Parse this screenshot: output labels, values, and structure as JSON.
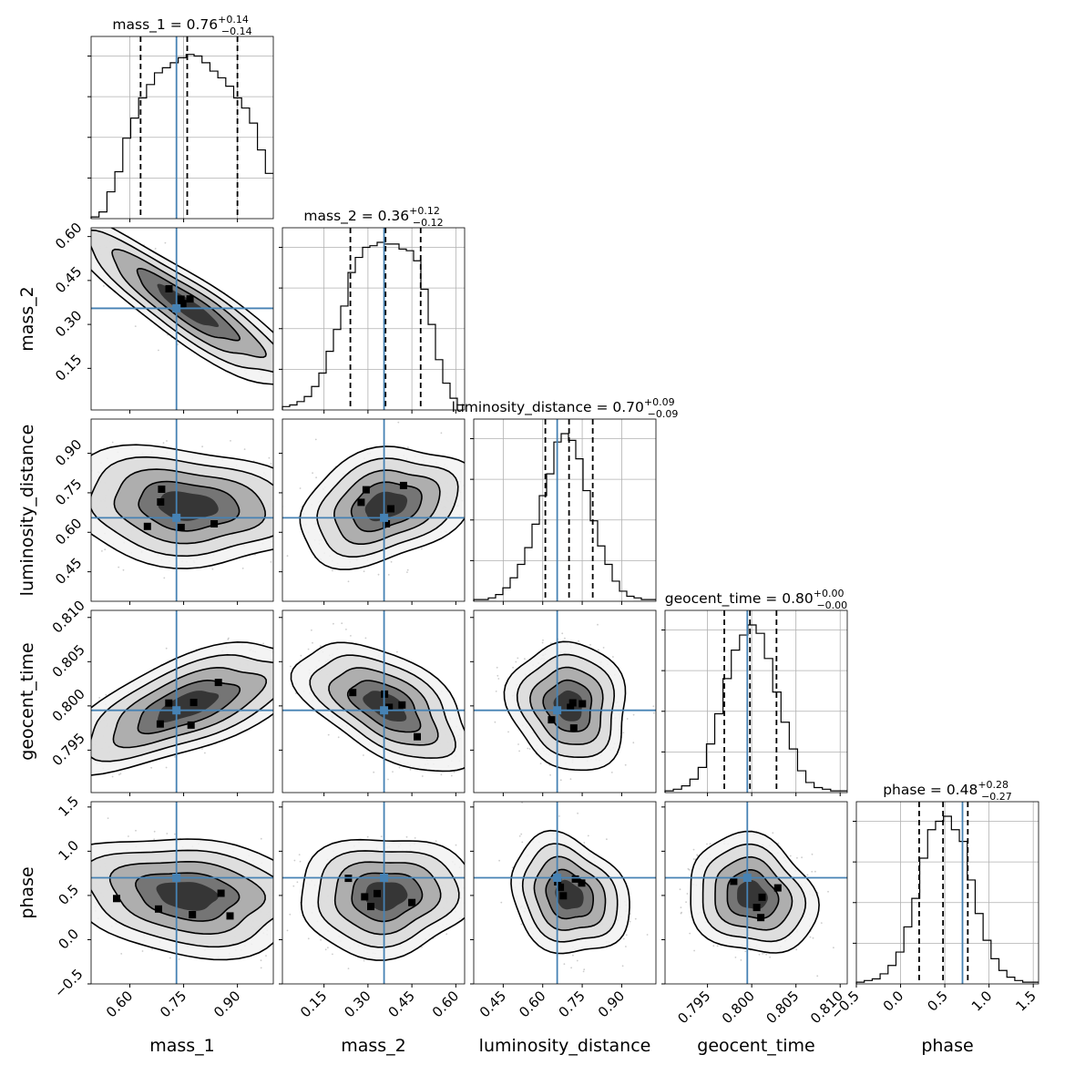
{
  "chart_data": {
    "type": "corner",
    "parameters": [
      "mass_1",
      "mass_2",
      "luminosity_distance",
      "geocent_time",
      "phase"
    ],
    "axis_labels": [
      "mass_1",
      "mass_2",
      "luminosity_distance",
      "geocent_time",
      "phase"
    ],
    "ranges": [
      [
        0.492,
        1.0
      ],
      [
        0.008,
        0.63
      ],
      [
        0.338,
        1.03
      ],
      [
        0.7902,
        0.8108
      ],
      [
        -0.5,
        1.56
      ]
    ],
    "ticks": [
      {
        "values": [
          0.6,
          0.75,
          0.9
        ],
        "labels": [
          "0.60",
          "0.75",
          "0.90"
        ]
      },
      {
        "values": [
          0.15,
          0.3,
          0.45,
          0.6
        ],
        "labels": [
          "0.15",
          "0.30",
          "0.45",
          "0.60"
        ]
      },
      {
        "values": [
          0.45,
          0.6,
          0.75,
          0.9
        ],
        "labels": [
          "0.45",
          "0.60",
          "0.75",
          "0.90"
        ]
      },
      {
        "values": [
          0.795,
          0.8,
          0.805,
          0.81
        ],
        "labels": [
          "0.795",
          "0.800",
          "0.805",
          "0.810"
        ]
      },
      {
        "values": [
          -0.5,
          0.0,
          0.5,
          1.0,
          1.5
        ],
        "labels": [
          "−0.5",
          "0.0",
          "0.5",
          "1.0",
          "1.5"
        ]
      }
    ],
    "truths": [
      0.73,
      0.355,
      0.655,
      0.7995,
      0.7
    ],
    "titles": [
      {
        "name": "mass_1",
        "median": "0.76",
        "plus": "+0.14",
        "minus": "−0.14",
        "q": [
          0.63,
          0.76,
          0.9
        ]
      },
      {
        "name": "mass_2",
        "median": "0.36",
        "plus": "+0.12",
        "minus": "−0.12",
        "q": [
          0.24,
          0.36,
          0.48
        ]
      },
      {
        "name": "luminosity_distance",
        "median": "0.70",
        "plus": "+0.09",
        "minus": "−0.09",
        "q": [
          0.61,
          0.7,
          0.79
        ]
      },
      {
        "name": "geocent_time",
        "median": "0.80",
        "plus": "+0.00",
        "minus": "−0.00",
        "q": [
          0.7969,
          0.7998,
          0.8028
        ]
      },
      {
        "name": "phase",
        "median": "0.48",
        "plus": "+0.28",
        "minus": "−0.27",
        "q": [
          0.21,
          0.48,
          0.76
        ]
      }
    ],
    "histograms": [
      [
        0.01,
        0.04,
        0.16,
        0.28,
        0.48,
        0.6,
        0.72,
        0.8,
        0.87,
        0.9,
        0.93,
        0.96,
        0.98,
        0.97,
        0.93,
        0.88,
        0.84,
        0.79,
        0.72,
        0.66,
        0.57,
        0.41,
        0.27
      ],
      [
        0.02,
        0.03,
        0.05,
        0.08,
        0.14,
        0.22,
        0.35,
        0.48,
        0.62,
        0.82,
        0.91,
        0.97,
        0.98,
        1.0,
        0.99,
        0.99,
        0.96,
        0.95,
        0.89,
        0.72,
        0.51,
        0.3,
        0.16,
        0.07,
        0.03
      ],
      [
        0.01,
        0.01,
        0.02,
        0.04,
        0.08,
        0.14,
        0.22,
        0.32,
        0.46,
        0.63,
        0.76,
        0.95,
        1.0,
        0.96,
        0.85,
        0.66,
        0.48,
        0.33,
        0.22,
        0.12,
        0.06,
        0.03,
        0.02,
        0.01,
        0.01
      ],
      [
        0.01,
        0.02,
        0.04,
        0.08,
        0.15,
        0.29,
        0.47,
        0.68,
        0.85,
        0.94,
        1.0,
        0.95,
        0.8,
        0.6,
        0.42,
        0.26,
        0.13,
        0.06,
        0.03,
        0.02,
        0.01,
        0.01
      ],
      [
        0.01,
        0.02,
        0.03,
        0.06,
        0.11,
        0.19,
        0.34,
        0.51,
        0.75,
        0.92,
        0.97,
        1.0,
        0.92,
        0.85,
        0.62,
        0.42,
        0.26,
        0.15,
        0.08,
        0.04,
        0.02,
        0.01,
        0.01
      ]
    ],
    "pairs": [
      {
        "row": 1,
        "col": 0,
        "mean": [
          0.76,
          0.36
        ],
        "sd": [
          0.14,
          0.12
        ],
        "rho": -0.9
      },
      {
        "row": 2,
        "col": 0,
        "mean": [
          0.76,
          0.7
        ],
        "sd": [
          0.14,
          0.09
        ],
        "rho": -0.15
      },
      {
        "row": 2,
        "col": 1,
        "mean": [
          0.36,
          0.7
        ],
        "sd": [
          0.12,
          0.09
        ],
        "rho": 0.3
      },
      {
        "row": 3,
        "col": 0,
        "mean": [
          0.76,
          0.8
        ],
        "sd": [
          0.14,
          0.0029
        ],
        "rho": 0.65
      },
      {
        "row": 3,
        "col": 1,
        "mean": [
          0.36,
          0.8
        ],
        "sd": [
          0.12,
          0.0029
        ],
        "rho": -0.55
      },
      {
        "row": 3,
        "col": 2,
        "mean": [
          0.7,
          0.8
        ],
        "sd": [
          0.09,
          0.0029
        ],
        "rho": -0.1
      },
      {
        "row": 4,
        "col": 0,
        "mean": [
          0.76,
          0.5
        ],
        "sd": [
          0.14,
          0.27
        ],
        "rho": -0.2
      },
      {
        "row": 4,
        "col": 1,
        "mean": [
          0.36,
          0.5
        ],
        "sd": [
          0.12,
          0.27
        ],
        "rho": 0.05
      },
      {
        "row": 4,
        "col": 2,
        "mean": [
          0.7,
          0.5
        ],
        "sd": [
          0.09,
          0.27
        ],
        "rho": -0.2
      },
      {
        "row": 4,
        "col": 3,
        "mean": [
          0.8,
          0.5
        ],
        "sd": [
          0.0029,
          0.27
        ],
        "rho": -0.15
      }
    ],
    "grid": true,
    "truth_color": "#4682b4",
    "contour_color": "#000000",
    "quantile_line_style": "dashed"
  }
}
